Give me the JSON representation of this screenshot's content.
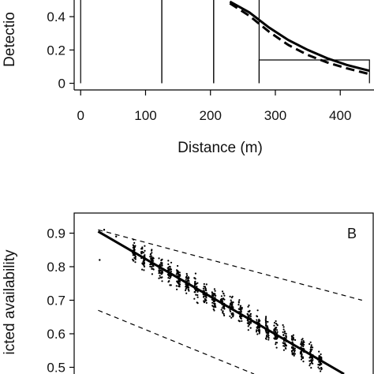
{
  "chart_data": [
    {
      "type": "line",
      "panel_label": "",
      "xlabel": "Distance (m)",
      "ylabel": "Detectio",
      "xlim": [
        -10,
        452
      ],
      "ylim": [
        -0.04,
        0.5
      ],
      "x_ticks": [
        0,
        100,
        200,
        300,
        400
      ],
      "y_ticks": [
        0,
        0.2,
        0.4
      ],
      "y_tick_labels": [
        "0",
        "0.2",
        "0.4"
      ],
      "histogram": {
        "bin_edges": [
          0,
          125,
          205,
          275,
          445
        ],
        "heights": [
          0.52,
          0.52,
          0.52,
          0.14
        ]
      },
      "series": [
        {
          "style": "solid",
          "x": [
            230,
            260,
            290,
            320,
            350,
            380,
            410,
            445
          ],
          "y": [
            0.49,
            0.425,
            0.335,
            0.26,
            0.2,
            0.15,
            0.11,
            0.075
          ]
        },
        {
          "style": "dashed",
          "x": [
            230,
            260,
            290,
            320,
            350,
            380,
            410,
            445
          ],
          "y": [
            0.48,
            0.405,
            0.31,
            0.23,
            0.17,
            0.125,
            0.09,
            0.055
          ]
        }
      ]
    },
    {
      "type": "scatter",
      "panel_label": "B",
      "xlabel": "",
      "ylabel": "icted availability",
      "xlim": [
        0,
        1
      ],
      "ylim": [
        0.48,
        0.96
      ],
      "y_ticks": [
        0.5,
        0.6,
        0.7,
        0.8,
        0.9
      ],
      "y_tick_labels": [
        "0.5",
        "0.6",
        "0.7",
        "0.8",
        "0.9"
      ],
      "fit_line": {
        "x": [
          0.08,
          0.9
        ],
        "y": [
          0.905,
          0.48
        ]
      },
      "upper_band": {
        "x": [
          0.08,
          0.96
        ],
        "y": [
          0.91,
          0.7
        ]
      },
      "lower_band": {
        "x": [
          0.08,
          0.6
        ],
        "y": [
          0.67,
          0.48
        ]
      },
      "scatter_summary": {
        "n_points": 900,
        "x_range": [
          0.2,
          0.82
        ],
        "columns": 22,
        "residual_sd": 0.035
      },
      "isolated_points": [
        {
          "x": 0.085,
          "y": 0.82
        },
        {
          "x": 0.1,
          "y": 0.91
        },
        {
          "x": 0.14,
          "y": 0.89
        }
      ]
    }
  ]
}
